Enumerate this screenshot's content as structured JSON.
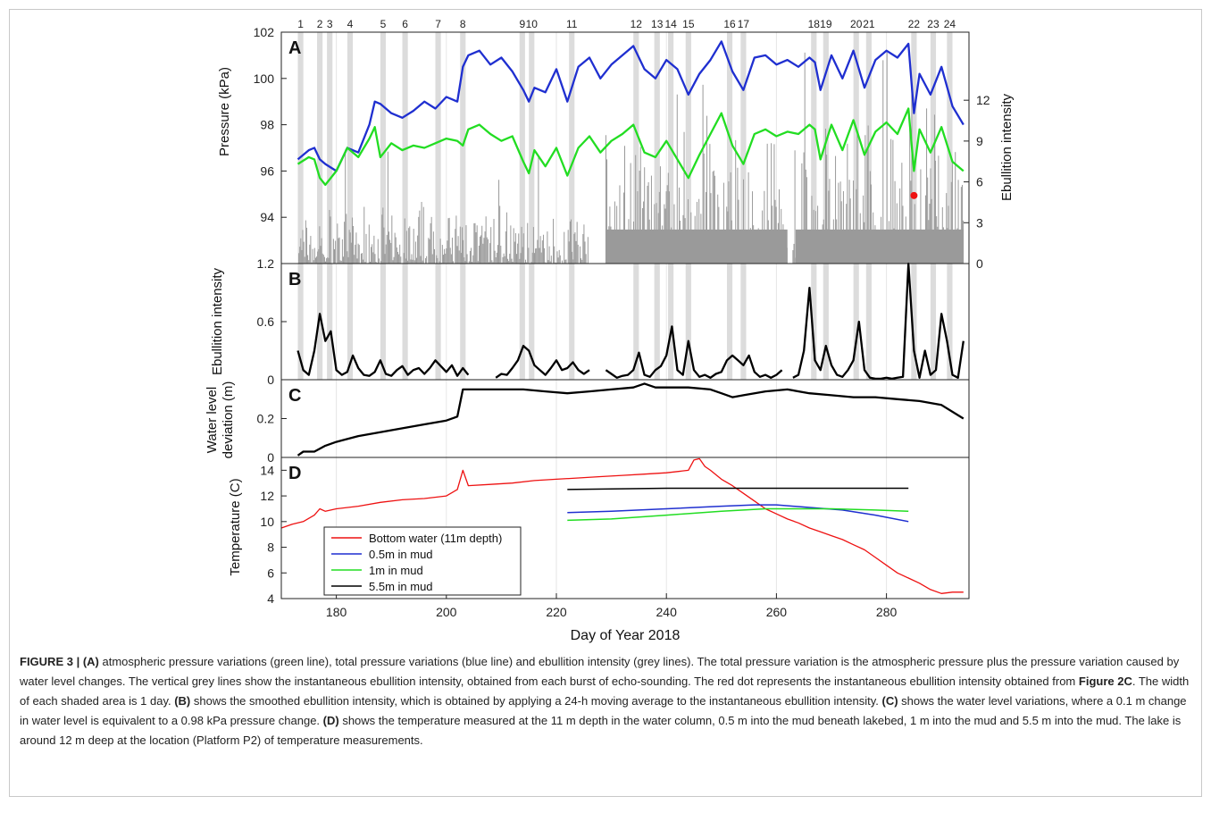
{
  "figure": {
    "xlabel": "Day of Year 2018",
    "xticks": [
      180,
      200,
      220,
      240,
      260,
      280
    ],
    "xlim": [
      170,
      295
    ],
    "shaded_days": [
      {
        "label": "1",
        "day": 173.5
      },
      {
        "label": "2",
        "day": 177
      },
      {
        "label": "3",
        "day": 178.8
      },
      {
        "label": "4",
        "day": 182.5
      },
      {
        "label": "5",
        "day": 188.5
      },
      {
        "label": "6",
        "day": 192.5
      },
      {
        "label": "7",
        "day": 198.5
      },
      {
        "label": "8",
        "day": 203
      },
      {
        "label": "9",
        "day": 213.8
      },
      {
        "label": "10",
        "day": 215.5
      },
      {
        "label": "11",
        "day": 222.8
      },
      {
        "label": "12",
        "day": 234.5
      },
      {
        "label": "13",
        "day": 238.3
      },
      {
        "label": "14",
        "day": 240.8
      },
      {
        "label": "15",
        "day": 244
      },
      {
        "label": "16",
        "day": 251.5
      },
      {
        "label": "17",
        "day": 254
      },
      {
        "label": "18",
        "day": 266.8
      },
      {
        "label": "19",
        "day": 269
      },
      {
        "label": "20",
        "day": 274.5
      },
      {
        "label": "21",
        "day": 276.8
      },
      {
        "label": "22",
        "day": 285
      },
      {
        "label": "23",
        "day": 288.5
      },
      {
        "label": "24",
        "day": 291.5
      }
    ]
  },
  "chart_data": [
    {
      "panel": "A",
      "type": "line",
      "ylabel": "Pressure (kPa)",
      "ylim": [
        92,
        102
      ],
      "yticks": [
        94,
        96,
        98,
        100,
        102
      ],
      "y2label": "Ebullition intensity",
      "y2ticks": [
        0,
        3,
        6,
        9,
        12
      ],
      "series": [
        {
          "name": "total pressure",
          "color": "#1f2fd0",
          "x": [
            173,
            175,
            176,
            177,
            178,
            180,
            182,
            184,
            186,
            187,
            188,
            190,
            192,
            194,
            196,
            198,
            200,
            202,
            203,
            204,
            206,
            208,
            210,
            212,
            214,
            215,
            216,
            218,
            220,
            222,
            224,
            226,
            228,
            230,
            232,
            234,
            236,
            238,
            240,
            242,
            244,
            246,
            248,
            250,
            252,
            254,
            256,
            258,
            260,
            262,
            264,
            266,
            267,
            268,
            270,
            272,
            274,
            276,
            278,
            280,
            282,
            284,
            285,
            286,
            288,
            290,
            292,
            294
          ],
          "y": [
            96.5,
            96.9,
            97.0,
            96.5,
            96.3,
            96.0,
            97.0,
            96.8,
            98.0,
            99.0,
            98.9,
            98.5,
            98.3,
            98.6,
            99.0,
            98.7,
            99.2,
            99.0,
            100.5,
            101.0,
            101.2,
            100.6,
            100.9,
            100.3,
            99.5,
            99.0,
            99.6,
            99.4,
            100.4,
            99.0,
            100.5,
            100.9,
            100.0,
            100.6,
            101.0,
            101.4,
            100.4,
            100.0,
            100.8,
            100.4,
            99.3,
            100.2,
            100.8,
            101.6,
            100.3,
            99.5,
            100.9,
            101.0,
            100.6,
            100.8,
            100.5,
            100.9,
            100.7,
            99.5,
            101.0,
            100.0,
            101.2,
            99.6,
            100.8,
            101.2,
            100.9,
            101.5,
            98.5,
            100.2,
            99.3,
            100.5,
            98.8,
            98.0
          ]
        },
        {
          "name": "atmospheric pressure",
          "color": "#22dd22",
          "x": [
            173,
            175,
            176,
            177,
            178,
            180,
            182,
            184,
            186,
            187,
            188,
            190,
            192,
            194,
            196,
            198,
            200,
            202,
            203,
            204,
            206,
            208,
            210,
            212,
            214,
            215,
            216,
            218,
            220,
            222,
            224,
            226,
            228,
            230,
            232,
            234,
            236,
            238,
            240,
            242,
            244,
            246,
            248,
            250,
            252,
            254,
            256,
            258,
            260,
            262,
            264,
            266,
            267,
            268,
            270,
            272,
            274,
            276,
            278,
            280,
            282,
            284,
            285,
            286,
            288,
            290,
            292,
            294
          ],
          "y": [
            96.3,
            96.6,
            96.5,
            95.7,
            95.4,
            96.0,
            97.0,
            96.6,
            97.4,
            97.9,
            96.6,
            97.2,
            96.9,
            97.1,
            97.0,
            97.2,
            97.4,
            97.3,
            97.1,
            97.8,
            98.0,
            97.6,
            97.3,
            97.5,
            96.4,
            95.9,
            96.9,
            96.2,
            97.0,
            95.8,
            97.0,
            97.5,
            96.8,
            97.3,
            97.6,
            98.0,
            96.8,
            96.6,
            97.3,
            96.5,
            95.7,
            96.7,
            97.6,
            98.5,
            97.1,
            96.3,
            97.6,
            97.8,
            97.5,
            97.7,
            97.6,
            98.0,
            97.8,
            96.5,
            98.0,
            96.9,
            98.2,
            96.7,
            97.7,
            98.1,
            97.6,
            98.7,
            96.0,
            97.8,
            96.8,
            97.9,
            96.4,
            96.0
          ]
        }
      ],
      "marker": {
        "name": "instantaneous ebullition intensity (Figure 2C)",
        "color": "#ee1111",
        "x": 285,
        "y2": 5
      }
    },
    {
      "panel": "B",
      "type": "line",
      "ylabel": "Ebullition intensity",
      "ylim": [
        0,
        1.2
      ],
      "yticks": [
        0,
        0.6,
        1.2
      ],
      "series": [
        {
          "name": "smoothed ebullition intensity",
          "color": "#000000",
          "x": [
            173,
            174,
            175,
            176,
            177,
            178,
            179,
            180,
            181,
            182,
            183,
            184,
            185,
            186,
            187,
            188,
            189,
            190,
            191,
            192,
            193,
            194,
            195,
            196,
            197,
            198,
            199,
            200,
            201,
            202,
            203,
            204,
            "gap",
            209,
            210,
            211,
            212,
            213,
            214,
            215,
            216,
            217,
            218,
            219,
            220,
            221,
            222,
            223,
            224,
            225,
            226,
            "gap",
            229,
            230,
            231,
            232,
            233,
            234,
            235,
            236,
            237,
            238,
            239,
            240,
            241,
            242,
            243,
            244,
            245,
            246,
            247,
            248,
            249,
            250,
            251,
            252,
            253,
            254,
            255,
            256,
            257,
            258,
            259,
            260,
            261,
            "gap",
            263,
            264,
            265,
            266,
            267,
            268,
            269,
            270,
            271,
            272,
            273,
            274,
            275,
            276,
            277,
            278,
            279,
            280,
            281,
            282,
            283,
            284,
            285,
            286,
            287,
            288,
            289,
            290,
            291,
            292,
            293,
            294
          ],
          "y": [
            0.3,
            0.1,
            0.05,
            0.3,
            0.68,
            0.4,
            0.5,
            0.1,
            0.05,
            0.08,
            0.25,
            0.12,
            0.05,
            0.04,
            0.08,
            0.2,
            0.06,
            0.04,
            0.1,
            0.14,
            0.05,
            0.1,
            0.12,
            0.06,
            0.12,
            0.2,
            0.14,
            0.08,
            0.15,
            0.04,
            0.12,
            0.05,
            null,
            0.02,
            0.06,
            0.05,
            0.12,
            0.2,
            0.35,
            0.3,
            0.15,
            0.1,
            0.05,
            0.12,
            0.2,
            0.1,
            0.12,
            0.18,
            0.1,
            0.06,
            0.1,
            null,
            0.1,
            0.06,
            0.02,
            0.04,
            0.05,
            0.1,
            0.28,
            0.05,
            0.03,
            0.1,
            0.14,
            0.25,
            0.55,
            0.1,
            0.05,
            0.4,
            0.1,
            0.03,
            0.05,
            0.02,
            0.06,
            0.08,
            0.2,
            0.25,
            0.2,
            0.15,
            0.25,
            0.08,
            0.03,
            0.05,
            0.02,
            0.05,
            0.1,
            null,
            0.02,
            0.05,
            0.3,
            0.95,
            0.2,
            0.1,
            0.35,
            0.15,
            0.05,
            0.03,
            0.1,
            0.2,
            0.6,
            0.1,
            0.02,
            0.01,
            0.01,
            0.02,
            0.01,
            0.02,
            0.03,
            1.2,
            0.3,
            0.02,
            0.3,
            0.05,
            0.1,
            0.68,
            0.4,
            0.05,
            0.02,
            0.4
          ]
        }
      ]
    },
    {
      "panel": "C",
      "type": "line",
      "ylabel_line1": "Water level",
      "ylabel_line2": "deviation (m)",
      "ylim": [
        0,
        0.4
      ],
      "yticks": [
        0,
        0.2
      ],
      "series": [
        {
          "name": "water level deviation",
          "color": "#000000",
          "x": [
            173,
            174,
            176,
            178,
            180,
            184,
            188,
            192,
            196,
            200,
            202,
            202.5,
            203,
            206,
            210,
            214,
            218,
            222,
            226,
            230,
            234,
            236,
            238,
            240,
            244,
            248,
            250,
            252,
            254,
            256,
            258,
            262,
            266,
            270,
            274,
            278,
            282,
            286,
            290,
            294
          ],
          "y": [
            0.01,
            0.03,
            0.03,
            0.06,
            0.08,
            0.11,
            0.13,
            0.15,
            0.17,
            0.19,
            0.21,
            0.28,
            0.35,
            0.35,
            0.35,
            0.35,
            0.34,
            0.33,
            0.34,
            0.35,
            0.36,
            0.38,
            0.36,
            0.36,
            0.36,
            0.35,
            0.33,
            0.31,
            0.32,
            0.33,
            0.34,
            0.35,
            0.33,
            0.32,
            0.31,
            0.31,
            0.3,
            0.29,
            0.27,
            0.2
          ]
        }
      ]
    },
    {
      "panel": "D",
      "type": "line",
      "ylabel": "Temperature (C)",
      "ylim": [
        4,
        15
      ],
      "yticks": [
        4,
        6,
        8,
        10,
        12,
        14
      ],
      "legend_position": "bottom-left",
      "series": [
        {
          "name": "Bottom water (11m depth)",
          "color": "#ee1111",
          "x": [
            170,
            172,
            174,
            176,
            177,
            178,
            180,
            184,
            188,
            192,
            196,
            200,
            202,
            203,
            204,
            208,
            212,
            216,
            220,
            224,
            228,
            232,
            236,
            240,
            244,
            245,
            246,
            247,
            248,
            250,
            252,
            254,
            256,
            258,
            260,
            262,
            264,
            266,
            268,
            270,
            272,
            274,
            276,
            278,
            280,
            282,
            284,
            286,
            288,
            290,
            292,
            294
          ],
          "y": [
            9.5,
            9.8,
            10.0,
            10.5,
            11.0,
            10.8,
            11.0,
            11.2,
            11.5,
            11.7,
            11.8,
            12.0,
            12.5,
            14.0,
            12.8,
            12.9,
            13.0,
            13.2,
            13.3,
            13.4,
            13.5,
            13.6,
            13.7,
            13.8,
            14.0,
            14.8,
            14.9,
            14.3,
            14.0,
            13.3,
            12.8,
            12.2,
            11.6,
            11.0,
            10.6,
            10.2,
            9.9,
            9.5,
            9.2,
            8.9,
            8.6,
            8.2,
            7.8,
            7.2,
            6.6,
            6.0,
            5.6,
            5.2,
            4.7,
            4.4,
            4.5,
            4.5
          ]
        },
        {
          "name": "0.5m in mud",
          "color": "#1f2fd0",
          "x": [
            222,
            230,
            240,
            250,
            256,
            260,
            266,
            272,
            278,
            284
          ],
          "y": [
            10.7,
            10.8,
            11.0,
            11.2,
            11.3,
            11.3,
            11.1,
            10.9,
            10.5,
            10.0
          ]
        },
        {
          "name": "1m in mud",
          "color": "#22dd22",
          "x": [
            222,
            230,
            240,
            250,
            258,
            262,
            270,
            278,
            284
          ],
          "y": [
            10.1,
            10.2,
            10.5,
            10.8,
            11.0,
            11.0,
            11.0,
            10.9,
            10.8
          ]
        },
        {
          "name": "5.5m in mud",
          "color": "#000000",
          "x": [
            222,
            240,
            260,
            284
          ],
          "y": [
            12.5,
            12.6,
            12.6,
            12.6
          ]
        }
      ]
    }
  ],
  "caption": {
    "label": "FIGURE 3 | ",
    "a_tag": "(A)",
    "a_text": " atmospheric pressure variations (green line), total pressure variations (blue line) and ebullition intensity (grey lines). The total pressure variation is the atmospheric pressure plus the pressure variation caused by water level changes. The vertical grey lines show the instantaneous ebullition intensity, obtained from each burst of echo-sounding. The red dot represents the instantaneous ebullition intensity obtained from ",
    "fig_ref": "Figure 2C",
    "a_text2": ". The width of each shaded area is 1 day. ",
    "b_tag": "(B)",
    "b_text": " shows the smoothed ebullition intensity, which is obtained by applying a 24-h moving average to the instantaneous ebullition intensity. ",
    "c_tag": "(C)",
    "c_text": " shows the water level variations, where a 0.1 m change in water level is equivalent to a 0.98 kPa pressure change. ",
    "d_tag": "(D)",
    "d_text": " shows the temperature measured at the 11 m depth in the water column, 0.5 m into the mud beneath lakebed, 1 m into the mud and 5.5 m into the mud. The lake is around 12 m deep at the location (Platform P2) of temperature measurements."
  }
}
